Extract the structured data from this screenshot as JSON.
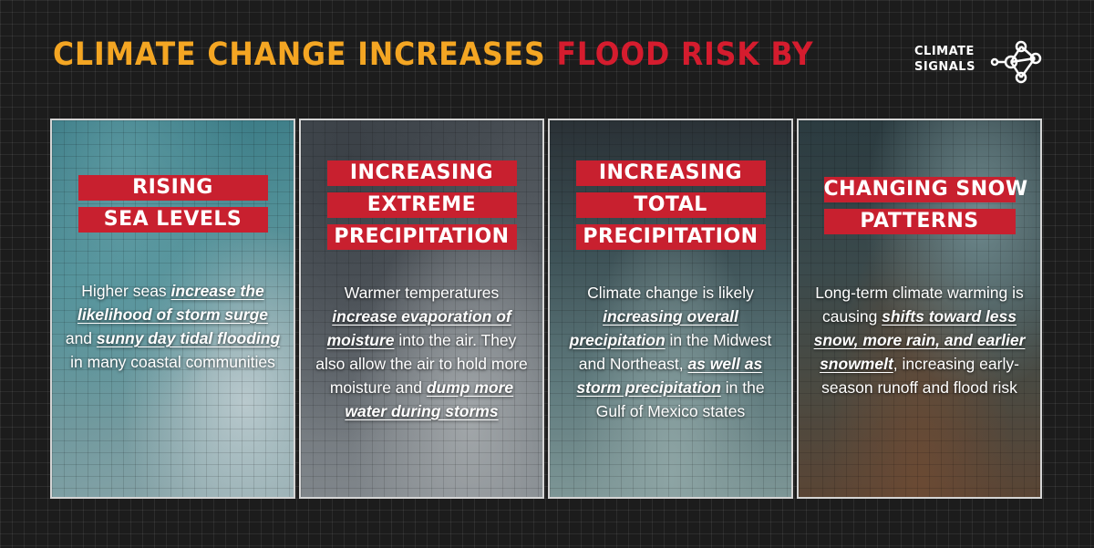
{
  "title": {
    "part1": "CLIMATE CHANGE INCREASES",
    "part2": "FLOOD RISK BY"
  },
  "logo": {
    "line1": "CLIMATE",
    "line2": "SIGNALS"
  },
  "colors": {
    "orange": "#f4a623",
    "red": "#d51c2e",
    "banner_red": "#c8202f",
    "background": "#1c1c1c"
  },
  "cards": [
    {
      "heading": [
        "RISING",
        "SEA LEVELS"
      ],
      "text": {
        "p1": "Higher seas ",
        "h1": "increase the likelihood of storm surge",
        "p2": " and ",
        "h2": "sunny day tidal flooding",
        "p3": " in many coastal communities"
      }
    },
    {
      "heading": [
        "INCREASING",
        "EXTREME",
        "PRECIPITATION"
      ],
      "text": {
        "p1": "Warmer temperatures ",
        "h1": "increase evaporation of moisture",
        "p2": " into the air. They also allow the air to hold more moisture and ",
        "h2": "dump more water during storms"
      }
    },
    {
      "heading": [
        "INCREASING",
        "TOTAL",
        "PRECIPITATION"
      ],
      "text": {
        "p1": "Climate change is likely ",
        "h1": "increasing overall precipitation",
        "p2": " in the Midwest and Northeast, ",
        "h2": "as well as storm precipitation",
        "p3": " in the Gulf of Mexico states"
      }
    },
    {
      "heading": [
        "CHANGING SNOW",
        "PATTERNS"
      ],
      "text": {
        "p1": "Long-term climate warming is causing ",
        "h1": "shifts toward less snow, more rain, and earlier snowmelt",
        "p2": ", increasing early-season runoff and flood risk"
      }
    }
  ]
}
